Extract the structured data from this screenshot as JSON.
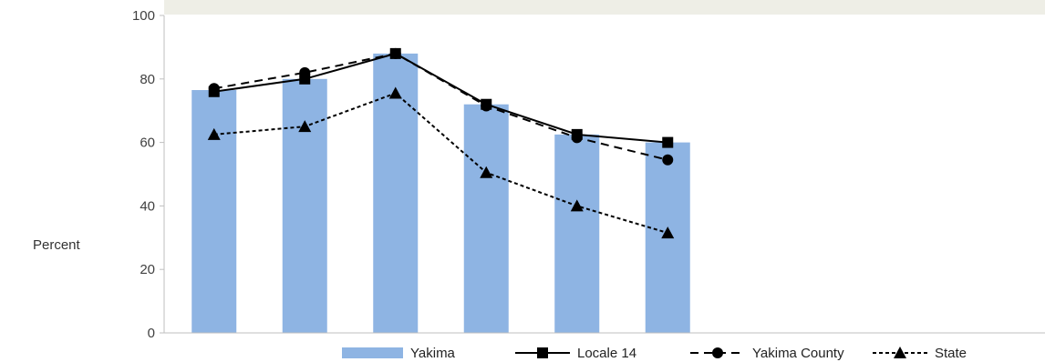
{
  "chart_data": {
    "type": "bar",
    "categories": [
      "",
      "",
      "",
      "",
      "",
      ""
    ],
    "ylabel": "Percent",
    "ylim": [
      0,
      100
    ],
    "yticks": [
      0,
      20,
      40,
      60,
      80,
      100
    ],
    "grid": false,
    "legend_position": "bottom",
    "bars": {
      "name": "Yakima",
      "color": "#8eb4e3",
      "values": [
        76.5,
        80,
        88,
        72,
        62.5,
        60
      ]
    },
    "series": [
      {
        "name": "Locale 14",
        "type": "line",
        "marker": "square",
        "dash": "solid",
        "values": [
          76,
          80,
          88,
          72,
          62.5,
          60
        ]
      },
      {
        "name": "Yakima County",
        "type": "line",
        "marker": "circle",
        "dash": "dashed",
        "values": [
          77,
          82,
          88,
          71.5,
          61.5,
          54.5
        ]
      },
      {
        "name": "State",
        "type": "line",
        "marker": "triangle",
        "dash": "dotted",
        "values": [
          62.5,
          65,
          75.5,
          50.5,
          40,
          31.5
        ]
      }
    ]
  }
}
